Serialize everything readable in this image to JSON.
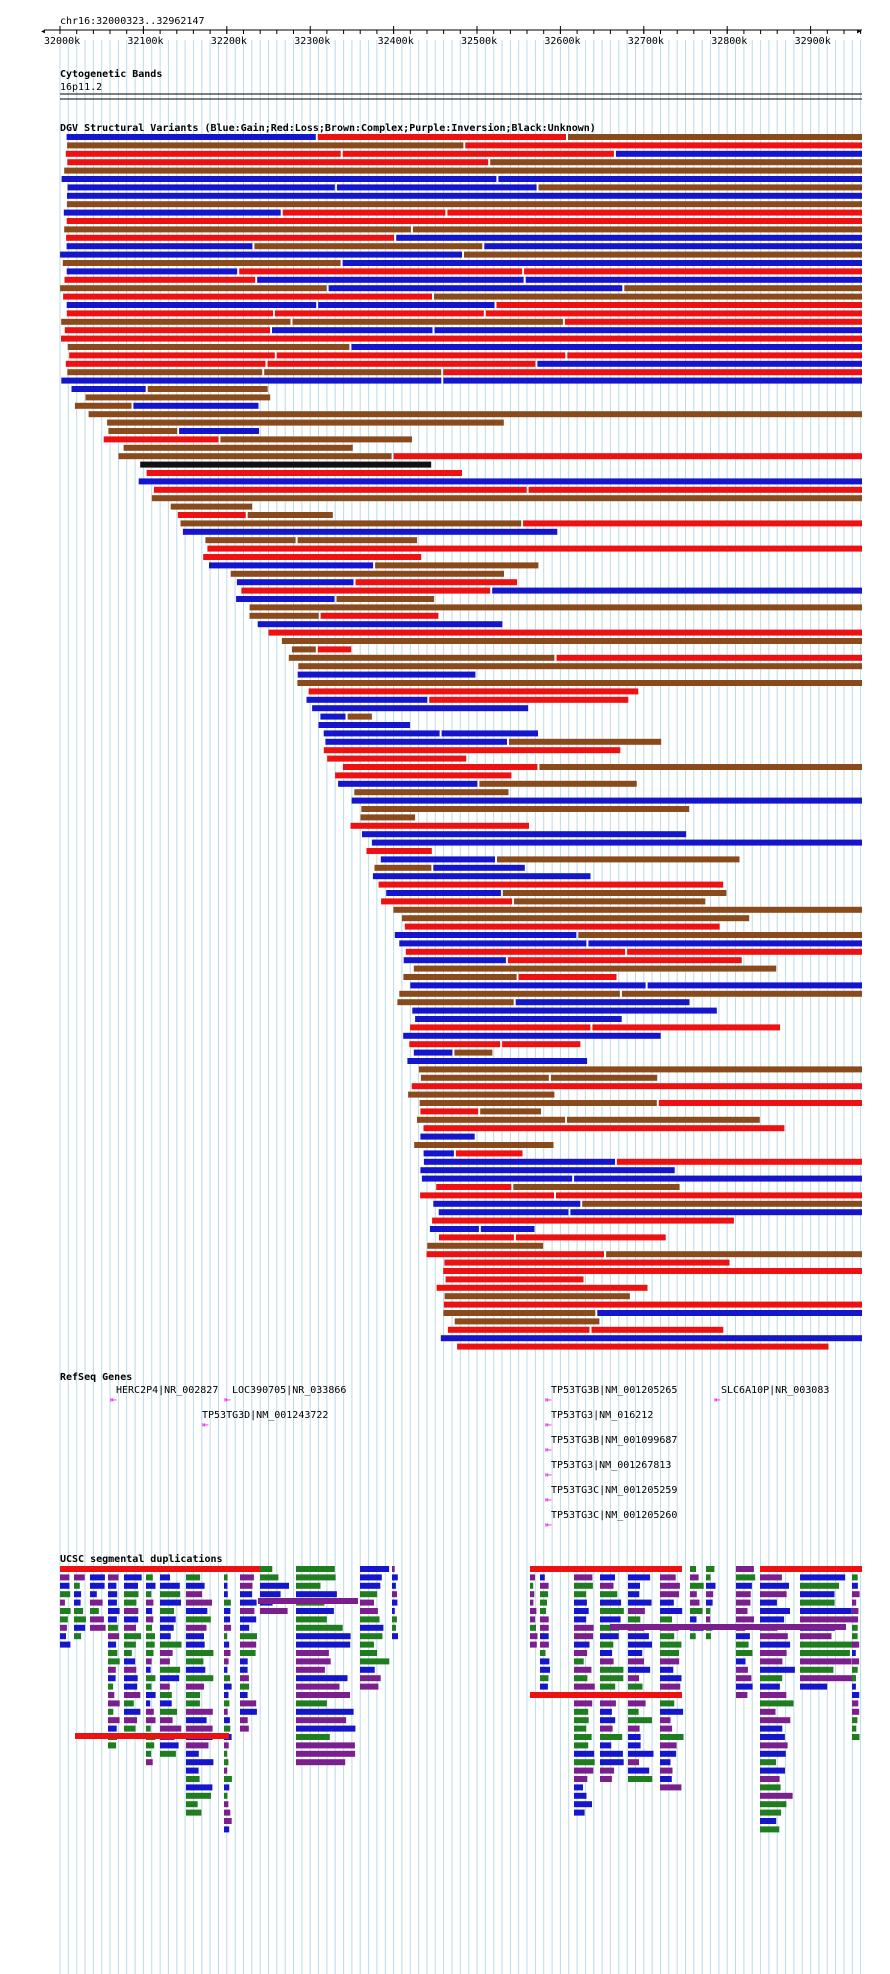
{
  "position": {
    "label": "chr16:32000323..32962147"
  },
  "ruler": {
    "start": 32000000,
    "end": 32965000,
    "ticks": [
      "32000k",
      "32100k",
      "32200k",
      "32300k",
      "32400k",
      "32500k",
      "32600k",
      "32700k",
      "32800k",
      "32900k"
    ],
    "tick_values": [
      32000000,
      32100000,
      32200000,
      32300000,
      32400000,
      32500000,
      32600000,
      32700000,
      32800000,
      32900000
    ]
  },
  "colors": {
    "gain": "#1515cc",
    "loss": "#ee1111",
    "complex": "#8b4a1c",
    "inversion": "#7b1f8f",
    "unknown": "#111111",
    "segdup_green": "#1f7d1f",
    "gene": "#ee22ee",
    "gridline": "#b8dcea"
  },
  "tracks": {
    "cytoband": {
      "title": "Cytogenetic Bands",
      "band": "16p11.2"
    },
    "dgv": {
      "title": "DGV Structural Variants (Blue:Gain;Red:Loss;Brown:Complex;Purple:Inversion;Black:Unknown)"
    },
    "refseq": {
      "title": "RefSeq Genes",
      "genes": [
        {
          "label": "HERC2P4|NR_002827",
          "pos": 32068000
        },
        {
          "label": "LOC390705|NR_033866",
          "pos": 32205000
        },
        {
          "label": "TP53TG3D|NM_001243722",
          "pos": 32178000
        },
        {
          "label": "TP53TG3B|NM_001205265",
          "pos": 32590000
        },
        {
          "label": "TP53TG3|NM_016212",
          "pos": 32590000
        },
        {
          "label": "TP53TG3B|NM_001099687",
          "pos": 32590000
        },
        {
          "label": "TP53TG3|NM_001267813",
          "pos": 32590000
        },
        {
          "label": "TP53TG3C|NM_001205259",
          "pos": 32590000
        },
        {
          "label": "TP53TG3C|NM_001205260",
          "pos": 32590000
        },
        {
          "label": "SLC6A10P|NR_003083",
          "pos": 32795000
        }
      ]
    },
    "segdup": {
      "title": "UCSC segmental duplications"
    }
  }
}
